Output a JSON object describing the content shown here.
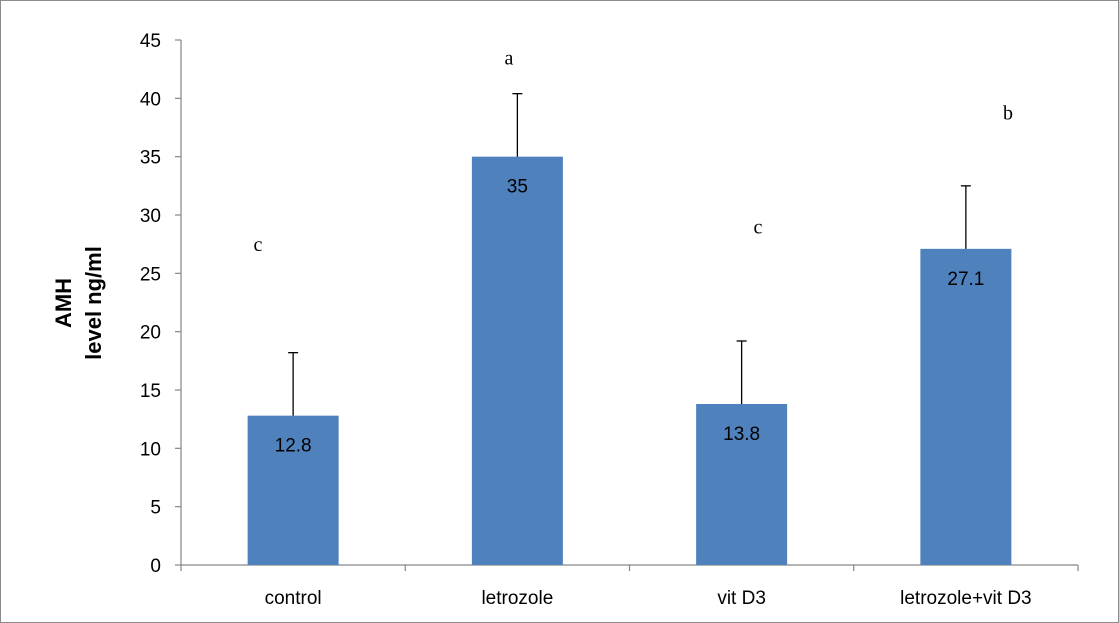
{
  "chart_data": {
    "type": "bar",
    "title": "",
    "xlabel": "",
    "ylabel_lines": [
      "AMH",
      "level ng/ml"
    ],
    "ylim": [
      0,
      45
    ],
    "yticks": [
      0,
      5,
      10,
      15,
      20,
      25,
      30,
      35,
      40,
      45
    ],
    "grid": false,
    "legend": "none",
    "bar_color": "#4f81bd",
    "categories": [
      "control",
      "letrozole",
      "vit D3",
      "letrozole+vit D3"
    ],
    "values": [
      12.8,
      35,
      13.8,
      27.1
    ],
    "value_labels": [
      "12.8",
      "35",
      "13.8",
      "27.1"
    ],
    "error_plus": [
      5.4,
      5.4,
      5.4,
      5.4
    ],
    "significance_letters": [
      "c",
      "a",
      "c",
      "b"
    ],
    "letter_heights": [
      27.5,
      43.5,
      29,
      38.8
    ]
  }
}
